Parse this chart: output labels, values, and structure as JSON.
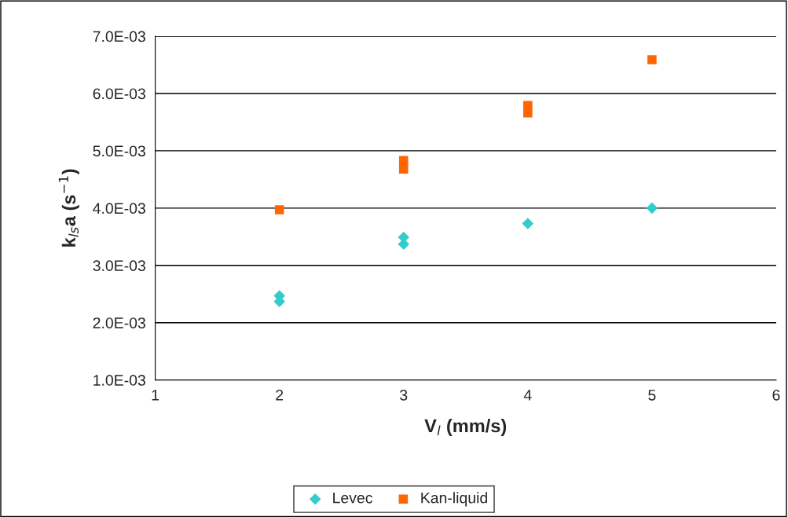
{
  "chart_data": {
    "type": "scatter",
    "xlabel": "V$_{l}$ (mm/s)",
    "ylabel": "k$_{ls}$a (s$^{−1}$)",
    "xlim": [
      1,
      6
    ],
    "xticks": [
      1,
      2,
      3,
      4,
      5,
      6
    ],
    "ylim": [
      0.001,
      0.007
    ],
    "yticks": [
      {
        "value": 0.001,
        "label": "1.0E-03"
      },
      {
        "value": 0.002,
        "label": "2.0E-03"
      },
      {
        "value": 0.003,
        "label": "3.0E-03"
      },
      {
        "value": 0.004,
        "label": "4.0E-03"
      },
      {
        "value": 0.005,
        "label": "5.0E-03"
      },
      {
        "value": 0.006,
        "label": "6.0E-03"
      },
      {
        "value": 0.007,
        "label": "7.0E-03"
      }
    ],
    "grid": "y",
    "legend": "bottom",
    "series": [
      {
        "name": "Levec",
        "color": "#33cccc",
        "marker": "diamond",
        "x": [
          2,
          2,
          3,
          3,
          4,
          5
        ],
        "values": [
          0.00247,
          0.00237,
          0.00349,
          0.00337,
          0.00373,
          0.004
        ]
      },
      {
        "name": "Kan-liquid",
        "color": "#ff6600",
        "marker": "square",
        "x": [
          2,
          3,
          3,
          4,
          4,
          5
        ],
        "values": [
          0.00397,
          0.00483,
          0.00468,
          0.00579,
          0.00566,
          0.00659
        ]
      }
    ]
  }
}
